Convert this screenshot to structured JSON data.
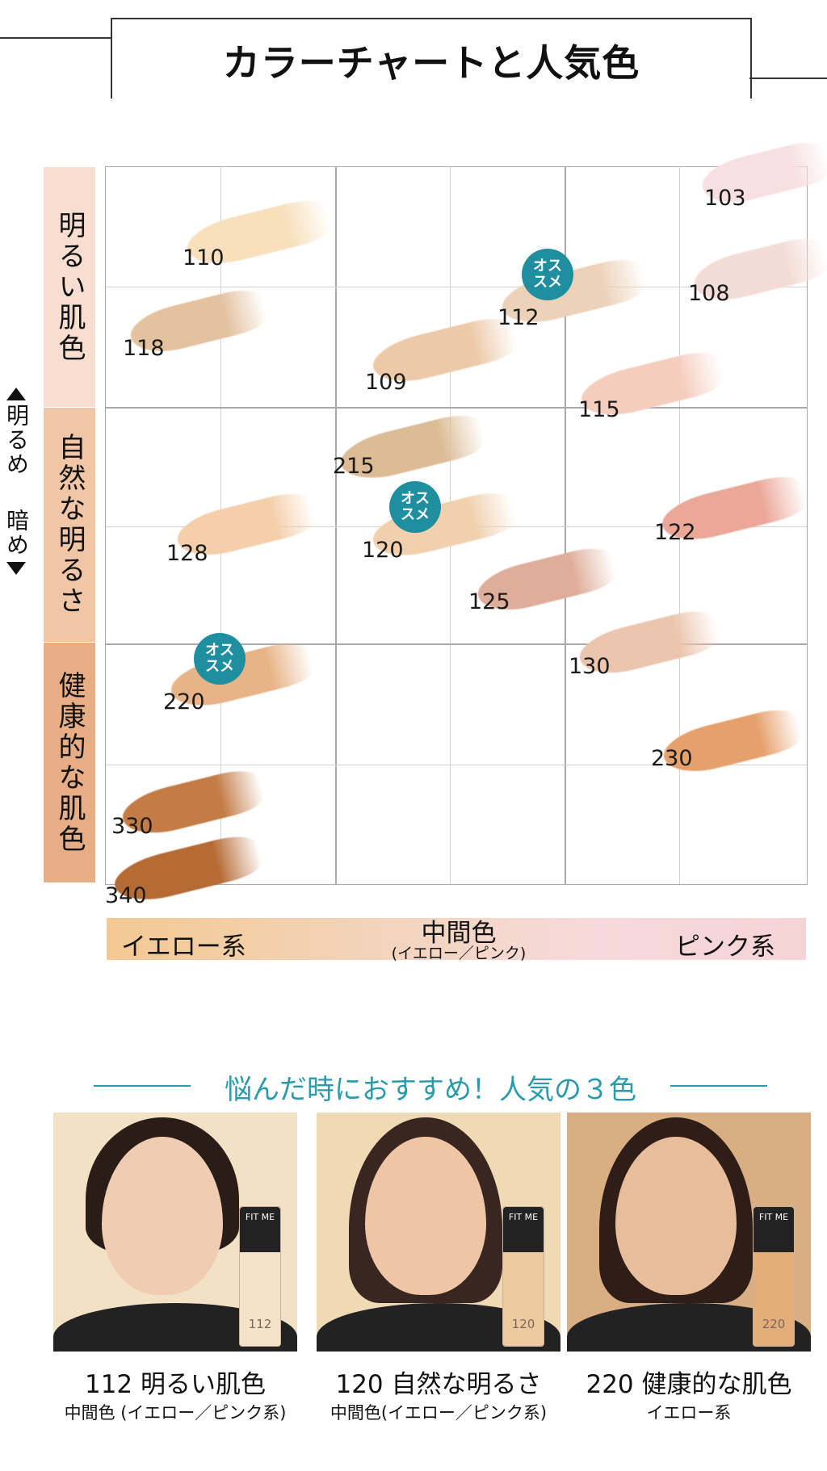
{
  "title": "カラーチャートと人気色",
  "bands": {
    "light": "明るい肌色",
    "natural": "自然な明るさ",
    "healthy": "健康的な肌色"
  },
  "side": {
    "up": "明るめ",
    "down": "暗め"
  },
  "shades": [
    {
      "label": "110",
      "color": "#f8e0bd"
    },
    {
      "label": "118",
      "color": "#e3c2a0"
    },
    {
      "label": "109",
      "color": "#ecc9a8"
    },
    {
      "label": "112",
      "color": "#ecd2b8"
    },
    {
      "label": "103",
      "color": "#f7e0df"
    },
    {
      "label": "108",
      "color": "#f4dcd6"
    },
    {
      "label": "115",
      "color": "#f5cdbd"
    },
    {
      "label": "215",
      "color": "#dcbc95"
    },
    {
      "label": "120",
      "color": "#f1d0ae"
    },
    {
      "label": "128",
      "color": "#f4cfaa"
    },
    {
      "label": "122",
      "color": "#eba898"
    },
    {
      "label": "125",
      "color": "#dfae9a"
    },
    {
      "label": "130",
      "color": "#ebc5ad"
    },
    {
      "label": "220",
      "color": "#e8b487"
    },
    {
      "label": "230",
      "color": "#e6a06c"
    },
    {
      "label": "330",
      "color": "#c47c47"
    },
    {
      "label": "340",
      "color": "#b66b34"
    }
  ],
  "recommended_label": [
    "オス",
    "スメ"
  ],
  "x_axis": {
    "left": "イエロー系",
    "middle": "中間色",
    "middle_sub": "(イエロー／ピンク)",
    "right": "ピンク系"
  },
  "popular": {
    "heading": "悩んだ時におすすめ！人気の３色",
    "cards": [
      {
        "main": "112 明るい肌色",
        "sub": "中間色 (イエロー／ピンク系)",
        "bottle_num": "112",
        "bottle_brand": "FIT ME",
        "bg": "#f3e1c6"
      },
      {
        "main": "120 自然な明るさ",
        "sub": "中間色(イエロー／ピンク系)",
        "bottle_num": "120",
        "bottle_brand": "FIT ME",
        "bg": "#f0dab5"
      },
      {
        "main": "220 健康的な肌色",
        "sub": "イエロー系",
        "bottle_num": "220",
        "bottle_brand": "FIT ME",
        "bg": "#d9ae82"
      }
    ]
  }
}
